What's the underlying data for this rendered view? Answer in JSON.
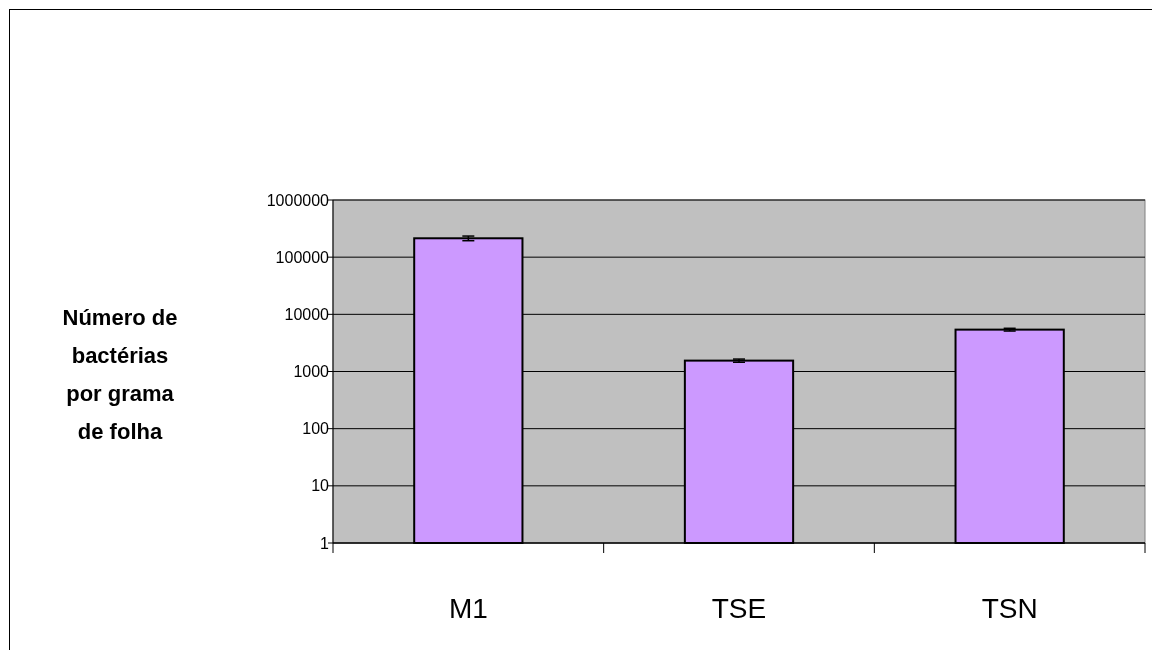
{
  "chart_data": {
    "type": "bar",
    "ylabel": "Número de bactérias por grama de folha",
    "categories": [
      "M1",
      "TSE",
      "TSN"
    ],
    "series": [
      {
        "color": "#cc99ff",
        "values": [
          214000,
          1550,
          5400
        ],
        "errors": [
          20000,
          100,
          300
        ]
      }
    ],
    "log": true,
    "ylim": [
      1,
      1000000
    ],
    "yticks": [
      1,
      10,
      100,
      1000,
      10000,
      100000,
      1000000
    ],
    "grid": "y"
  }
}
